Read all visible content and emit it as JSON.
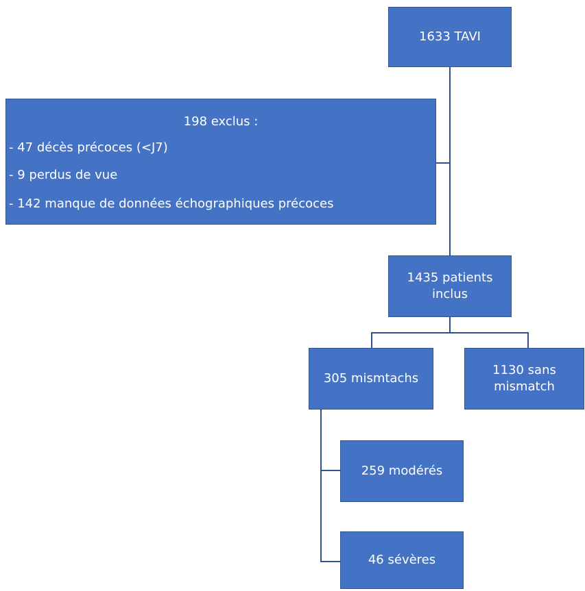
{
  "nodes": [
    {
      "label": "1633 TAVI"
    },
    {
      "label": "1435 patients inclus"
    },
    {
      "label": "305 mismtachs"
    },
    {
      "label": "1130 sans mismatch"
    },
    {
      "label": "259 modérés"
    },
    {
      "label": "46 sévères"
    }
  ],
  "exclusion": {
    "title": "198 exclus :",
    "items": [
      "- 47 décès précoces (<J7)",
      "- 9 perdus de vue",
      "- 142 manque de données échographiques précoces"
    ]
  }
}
